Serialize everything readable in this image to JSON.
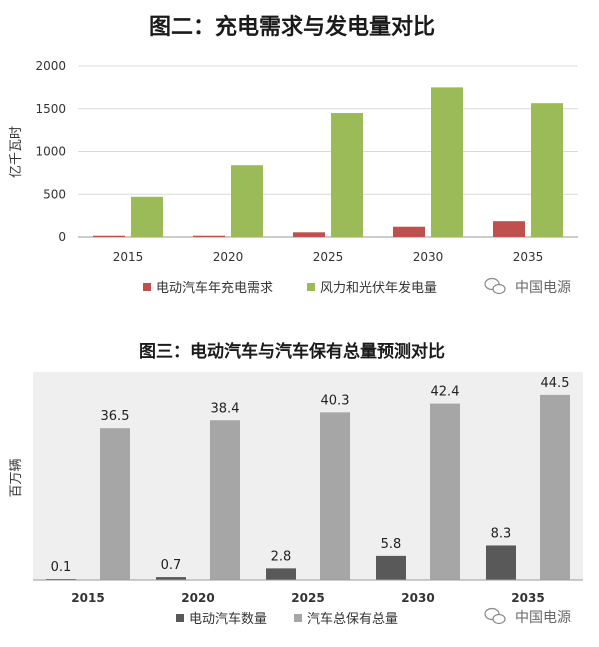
{
  "chart_data": [
    {
      "type": "bar",
      "title": "图二：充电需求与发电量对比",
      "ylabel": "亿千瓦时",
      "ylim": [
        0,
        2000
      ],
      "yticks": [
        0,
        500,
        1000,
        1500,
        2000
      ],
      "grid": true,
      "legend": "bottom",
      "categories": [
        "2015",
        "2020",
        "2025",
        "2030",
        "2035"
      ],
      "series": [
        {
          "name": "电动汽车年充电需求",
          "color": "#c0504d",
          "values": [
            15,
            15,
            55,
            120,
            185
          ]
        },
        {
          "name": "风力和光伏年发电量",
          "color": "#9bbb59",
          "values": [
            470,
            840,
            1450,
            1750,
            1565
          ]
        }
      ]
    },
    {
      "type": "bar",
      "title": "图三：电动汽车与汽车保有总量预测对比",
      "ylabel": "百万辆",
      "ylim": [
        0,
        50
      ],
      "grid": false,
      "legend": "bottom",
      "categories": [
        "2015",
        "2020",
        "2025",
        "2030",
        "2035"
      ],
      "series": [
        {
          "name": "电动汽车数量",
          "color": "#595959",
          "values": [
            0.1,
            0.7,
            2.8,
            5.8,
            8.3
          ],
          "labels": [
            "0.1",
            "0.7",
            "2.8",
            "5.8",
            "8.3"
          ]
        },
        {
          "name": "汽车总保有总量",
          "color": "#a6a6a6",
          "values": [
            36.5,
            38.4,
            40.3,
            42.4,
            44.5
          ],
          "labels": [
            "36.5",
            "38.4",
            "40.3",
            "42.4",
            "44.5"
          ]
        }
      ]
    }
  ],
  "watermark": {
    "text": "中国电源",
    "icon": "wechat-icon"
  }
}
